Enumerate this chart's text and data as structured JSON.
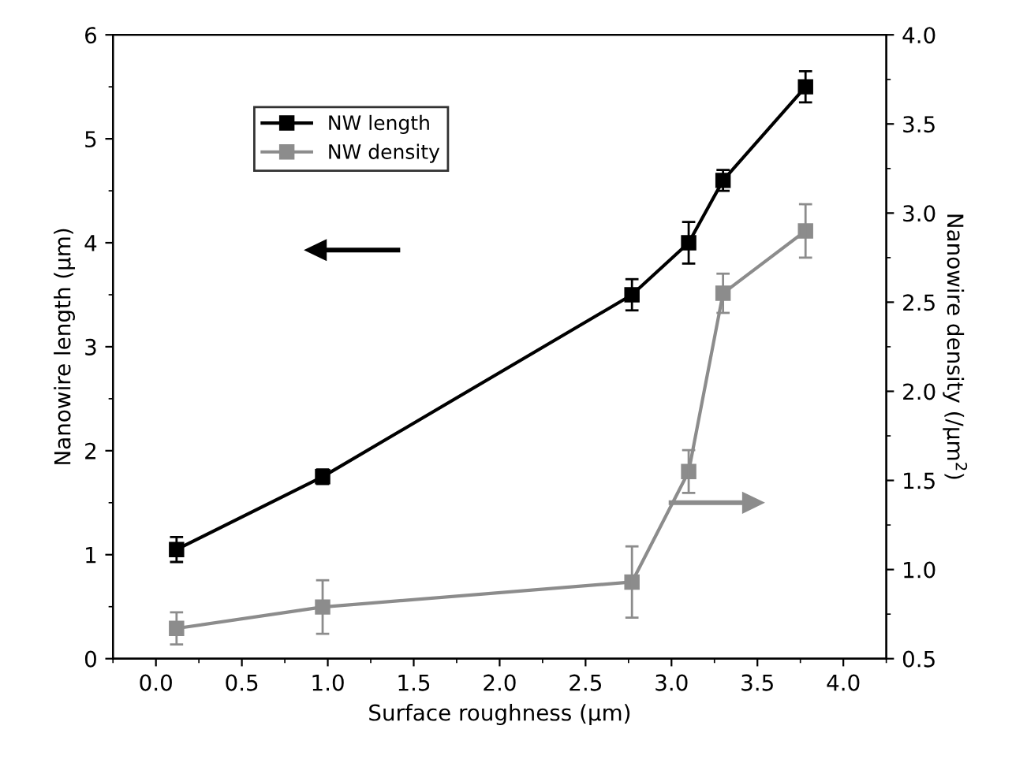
{
  "chart_data": {
    "type": "line",
    "xlabel": "Surface roughness (μm)",
    "ylabel": "Nanowire length (μm)",
    "y2label": "Nanowire density (/μm$^{2}$)",
    "x": [
      0.12,
      0.97,
      2.77,
      3.1,
      3.3,
      3.78
    ],
    "series": [
      {
        "name": "NW length",
        "color": "#000000",
        "values": [
          1.05,
          1.75,
          3.5,
          4.0,
          4.6,
          5.5
        ],
        "errors": [
          0.12,
          0.07,
          0.15,
          0.2,
          0.1,
          0.15
        ]
      },
      {
        "name": "NW density",
        "color": "#8c8c8c",
        "axis": "y2",
        "values": [
          0.67,
          0.79,
          0.93,
          1.55,
          2.55,
          2.9
        ],
        "errors": [
          0.09,
          0.15,
          0.2,
          0.12,
          0.11,
          0.15
        ]
      }
    ],
    "xlim": [
      -0.25,
      4.25
    ],
    "xticks": [
      {
        "value": 0,
        "label": "0.0"
      },
      0.5,
      {
        "value": 1,
        "label": "1.0"
      },
      1.5,
      {
        "value": 2,
        "label": "2.0"
      },
      2.5,
      {
        "value": 3,
        "label": "3.0"
      },
      3.5,
      {
        "value": 4,
        "label": "4.0"
      }
    ],
    "ylim": [
      0,
      6
    ],
    "yticks": [
      0,
      1,
      2,
      3,
      4,
      5,
      6
    ],
    "y2lim": [
      0.5,
      4.0
    ],
    "y2ticks": [
      0.5,
      {
        "value": 1,
        "label": "1.0"
      },
      1.5,
      {
        "value": 2,
        "label": "2.0"
      },
      2.5,
      {
        "value": 3,
        "label": "3.0"
      },
      3.5,
      {
        "value": 4,
        "label": "4.0"
      }
    ],
    "legend": "top left",
    "marker": "square",
    "line_style": "solid",
    "grid": false
  }
}
